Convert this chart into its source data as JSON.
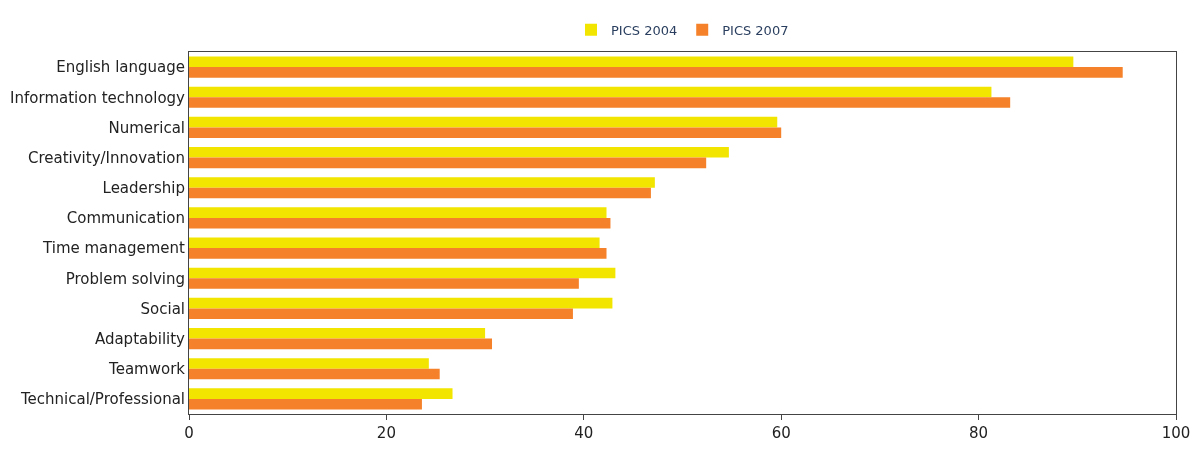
{
  "chart_data": {
    "type": "bar",
    "orientation": "horizontal",
    "categories": [
      "English language",
      "Information technology",
      "Numerical",
      "Creativity/Innovation",
      "Leadership",
      "Communication",
      "Time management",
      "Problem solving",
      "Social",
      "Adaptability",
      "Teamwork",
      "Technical/Professional"
    ],
    "series": [
      {
        "name": "PICS 2004",
        "color": "#f2e600",
        "values": [
          89.6,
          81.3,
          59.6,
          54.7,
          47.2,
          42.3,
          41.6,
          43.2,
          42.9,
          30.0,
          24.3,
          26.7
        ]
      },
      {
        "name": "PICS 2007",
        "color": "#f5822a",
        "values": [
          94.6,
          83.2,
          60.0,
          52.4,
          46.8,
          42.7,
          42.3,
          39.5,
          38.9,
          30.7,
          25.4,
          23.6
        ]
      }
    ],
    "xlim": [
      0,
      100
    ],
    "xticks": [
      0,
      20,
      40,
      60,
      80,
      100
    ],
    "legend": "top"
  }
}
